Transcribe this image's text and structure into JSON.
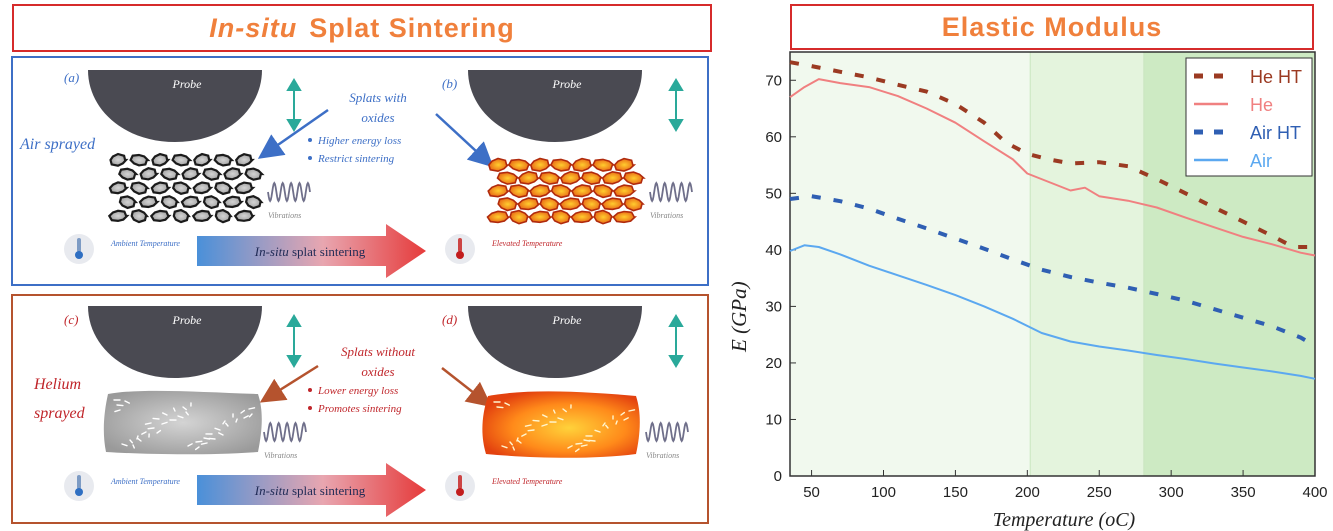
{
  "left_title": {
    "italic": "In-situ",
    "rest": "Splat Sintering"
  },
  "right_title": "Elastic Modulus",
  "panels": {
    "top": {
      "label_a": "(a)",
      "label_b": "(b)",
      "probe": "Probe",
      "side_label": "Air sprayed",
      "callout_title_1": "Splats with",
      "callout_title_2": "oxides",
      "bullets": [
        "Higher energy loss",
        "Restrict sintering"
      ],
      "vibrations": "Vibrations",
      "ambient": "Ambient Temperature",
      "elevated": "Elevated Temperature",
      "arrow_italic": "In-situ",
      "arrow_rest": " splat sintering",
      "frame_color": "#3d6fc6",
      "text_color": "#3d6fc6"
    },
    "bottom": {
      "label_c": "(c)",
      "label_d": "(d)",
      "probe": "Probe",
      "side_label_1": "Helium",
      "side_label_2": "sprayed",
      "callout_title_1": "Splats without",
      "callout_title_2": "oxides",
      "bullets": [
        "Lower energy loss",
        "Promotes sintering"
      ],
      "vibrations": "Vibrations",
      "ambient": "Ambient Temperature",
      "elevated": "Elevated Temperature",
      "arrow_italic": "In-situ",
      "arrow_rest": " splat sintering",
      "frame_color": "#b5532e",
      "text_color": "#c0262b"
    }
  },
  "chart_data": {
    "type": "line",
    "xlabel": "Temperature (oC)",
    "ylabel": "E (GPa)",
    "xlim": [
      35,
      400
    ],
    "ylim": [
      0,
      75
    ],
    "xticks": [
      50,
      100,
      150,
      200,
      250,
      300,
      350,
      400
    ],
    "yticks": [
      0,
      10,
      20,
      30,
      40,
      50,
      60,
      70
    ],
    "legend_position": "top-right",
    "shaded_regions": [
      {
        "from": 35,
        "to": 202,
        "color": "#f1f9ee"
      },
      {
        "from": 202,
        "to": 281,
        "color": "#e4f4dd"
      },
      {
        "from": 281,
        "to": 400,
        "color": "#cdeac3"
      }
    ],
    "series": [
      {
        "name": "He HT",
        "style": "dashed",
        "color": "#9b3a22",
        "x": [
          35,
          50,
          70,
          90,
          110,
          130,
          150,
          170,
          185,
          200,
          215,
          230,
          250,
          270,
          290,
          310,
          330,
          350,
          370,
          385,
          400
        ],
        "y": [
          73.2,
          72.5,
          71.5,
          70.5,
          69.2,
          68,
          65.8,
          62.5,
          59,
          57,
          56,
          55.3,
          55.5,
          54.8,
          52.5,
          50,
          47.5,
          45,
          42.5,
          40.5,
          40.5
        ]
      },
      {
        "name": "He",
        "style": "solid",
        "color": "#f08080",
        "x": [
          35,
          45,
          55,
          70,
          90,
          110,
          130,
          150,
          170,
          190,
          200,
          215,
          230,
          240,
          250,
          270,
          290,
          310,
          330,
          350,
          370,
          390,
          400
        ],
        "y": [
          67,
          68.8,
          70.2,
          69.5,
          68.8,
          67.2,
          65,
          62.5,
          59.2,
          56,
          53.5,
          52,
          50.5,
          51,
          49.5,
          48.7,
          47.5,
          45.7,
          44,
          42.3,
          41,
          39.5,
          39
        ]
      },
      {
        "name": "Air HT",
        "style": "dashed",
        "color": "#2f5fb3",
        "x": [
          35,
          50,
          70,
          90,
          110,
          130,
          150,
          170,
          190,
          210,
          230,
          250,
          270,
          290,
          310,
          330,
          350,
          370,
          390,
          400
        ],
        "y": [
          49,
          49.5,
          48.6,
          47.3,
          45.5,
          43.8,
          42,
          40.2,
          38.3,
          36.5,
          35.2,
          34.2,
          33.3,
          32.2,
          31,
          29.5,
          28,
          26.5,
          24.5,
          23
        ]
      },
      {
        "name": "Air",
        "style": "solid",
        "color": "#5ba8f0",
        "x": [
          35,
          45,
          55,
          70,
          90,
          110,
          130,
          150,
          170,
          190,
          210,
          230,
          250,
          270,
          290,
          310,
          330,
          350,
          370,
          390,
          400
        ],
        "y": [
          39.8,
          40.8,
          40.5,
          39.2,
          37.2,
          35.5,
          33.8,
          32,
          30,
          27.8,
          25.3,
          23.8,
          22.9,
          22.2,
          21.4,
          20.7,
          19.9,
          19.2,
          18.5,
          17.7,
          17.2
        ]
      }
    ]
  }
}
